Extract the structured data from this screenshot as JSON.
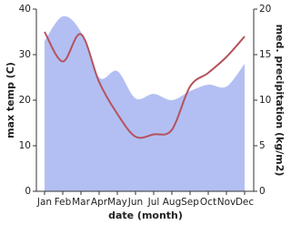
{
  "chart_data": {
    "type": "line",
    "x_label": "date (month)",
    "y_label": "max temp (C)",
    "y2_label": "med. precipitation (kg/m2)",
    "categories": [
      "Jan",
      "Feb",
      "Mar",
      "Apr",
      "May",
      "Jun",
      "Jul",
      "Aug",
      "Sep",
      "Oct",
      "Nov",
      "Dec"
    ],
    "series": [
      {
        "type": "area",
        "axis": "y2",
        "color": "#b3bff2",
        "values": [
          16.5,
          19.2,
          17.5,
          12.5,
          13.2,
          10.2,
          10.7,
          10,
          11,
          11.7,
          11.5,
          14
        ]
      },
      {
        "type": "line",
        "color": "#b5525e",
        "values": [
          35,
          28.5,
          34.5,
          24,
          17,
          12,
          12.5,
          13.5,
          23,
          26,
          29.5,
          34
        ]
      }
    ],
    "ylim": [
      0,
      40
    ],
    "yticks": [
      0,
      10,
      20,
      30,
      40
    ],
    "y2lim": [
      0,
      20
    ],
    "y2ticks": [
      0,
      5,
      10,
      15,
      20
    ]
  }
}
